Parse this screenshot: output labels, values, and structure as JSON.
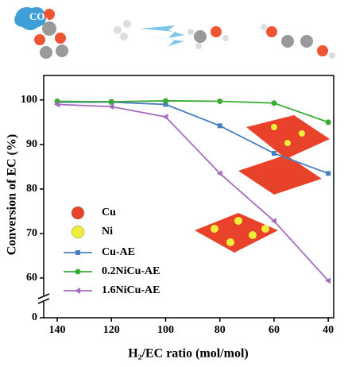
{
  "chart_data": {
    "type": "line",
    "x_label": "H₂/EC ratio (mol/mol)",
    "y_label": "Conversion of EC (%)",
    "annotation": "CO₂",
    "x": [
      140,
      120,
      100,
      80,
      60,
      40
    ],
    "xlim": [
      145,
      38
    ],
    "xticks": [
      140,
      120,
      100,
      80,
      60,
      40
    ],
    "ylim": [
      0,
      105.5
    ],
    "yticks": [
      0,
      60,
      70,
      80,
      90,
      100
    ],
    "axis_break": true,
    "atom_legend": [
      {
        "name": "Cu",
        "color": "#e8432a"
      },
      {
        "name": "Ni",
        "color": "#f0ec3a"
      }
    ],
    "series": [
      {
        "name": "Cu-AE",
        "color": "#4a7fbf",
        "marker": "square",
        "values": [
          99.5,
          99.5,
          99,
          94.2,
          88,
          83.5
        ]
      },
      {
        "name": "0.2NiCu-AE",
        "color": "#3aaa35",
        "marker": "circle",
        "values": [
          99.7,
          99.6,
          99.8,
          99.7,
          99.3,
          95
        ]
      },
      {
        "name": "1.6NiCu-AE",
        "color": "#a56cc1",
        "marker": "triangle-left",
        "values": [
          99,
          98.5,
          96.2,
          83.5,
          72.8,
          56
        ]
      }
    ]
  }
}
